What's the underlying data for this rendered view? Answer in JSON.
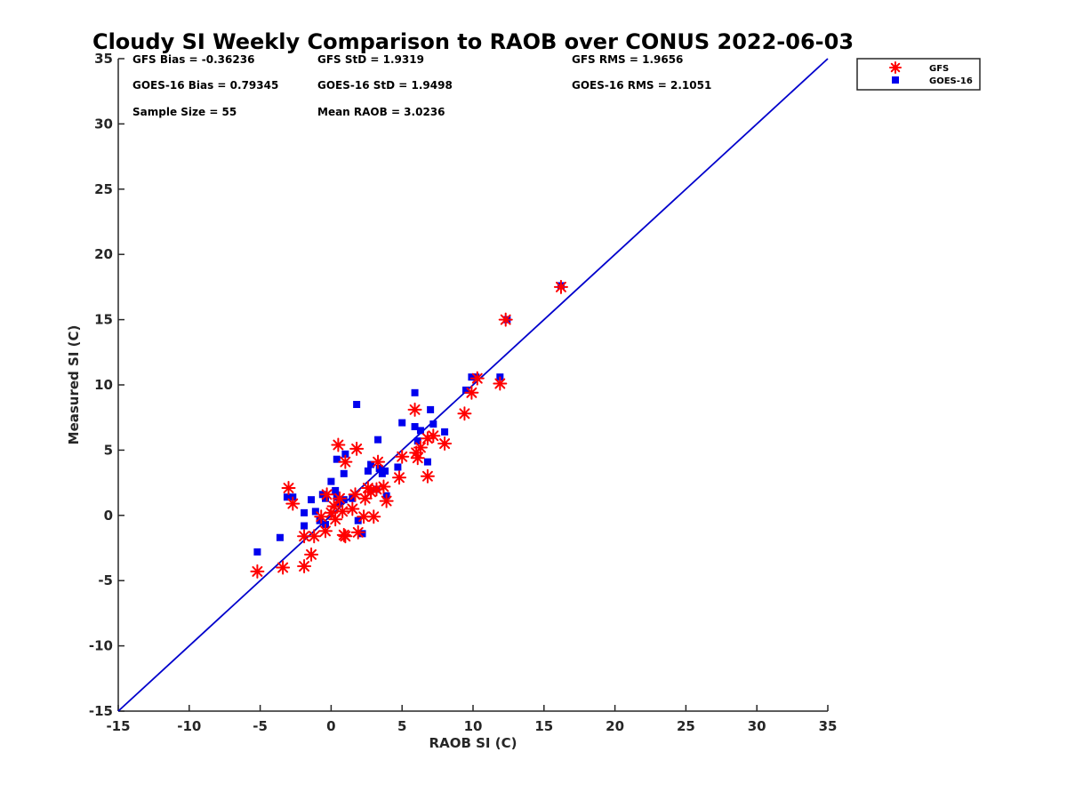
{
  "chart_data": {
    "type": "scatter",
    "title": "Cloudy SI Weekly Comparison to RAOB over CONUS 2022-06-03",
    "xlabel": "RAOB SI (C)",
    "ylabel": "Measured SI (C)",
    "xlim": [
      -15,
      35
    ],
    "ylim": [
      -15,
      35
    ],
    "xticks": [
      "-15",
      "-10",
      "-5",
      "0",
      "5",
      "10",
      "15",
      "20",
      "25",
      "30",
      "35"
    ],
    "yticks": [
      "-15",
      "-10",
      "-5",
      "0",
      "5",
      "10",
      "15",
      "20",
      "25",
      "30",
      "35"
    ],
    "grid": false,
    "legend_placement": "top-right, outside plot",
    "reference_line": {
      "from": [
        -15,
        -15
      ],
      "to": [
        35,
        35
      ],
      "color": "#0000cc"
    },
    "stats": {
      "gfs_bias": "GFS Bias = -0.36236",
      "gfs_std": "GFS StD = 1.9319",
      "gfs_rms": "GFS RMS = 1.9656",
      "goes_bias": "GOES-16 Bias = 0.79345",
      "goes_std": "GOES-16 StD = 1.9498",
      "goes_rms": "GOES-16 RMS = 2.1051",
      "sample_size": "Sample Size = 55",
      "mean_raob": "Mean RAOB = 3.0236"
    },
    "series": [
      {
        "name": "GFS",
        "marker": "asterisk",
        "color": "#ff0000",
        "points": [
          [
            -5.2,
            -4.3
          ],
          [
            -3.4,
            -4.0
          ],
          [
            -3.0,
            2.1
          ],
          [
            -2.7,
            0.9
          ],
          [
            -1.9,
            -1.6
          ],
          [
            -1.9,
            -3.9
          ],
          [
            -1.4,
            -3.0
          ],
          [
            -1.2,
            -1.6
          ],
          [
            -0.7,
            -0.1
          ],
          [
            -0.4,
            -1.2
          ],
          [
            -0.3,
            1.6
          ],
          [
            0.0,
            0.2
          ],
          [
            0.2,
            0.7
          ],
          [
            0.3,
            -0.3
          ],
          [
            0.5,
            5.4
          ],
          [
            0.6,
            1.3
          ],
          [
            0.8,
            0.3
          ],
          [
            0.9,
            -1.5
          ],
          [
            1.0,
            -1.6
          ],
          [
            1.0,
            4.1
          ],
          [
            1.5,
            0.5
          ],
          [
            1.7,
            1.6
          ],
          [
            1.8,
            5.1
          ],
          [
            1.9,
            -1.3
          ],
          [
            2.3,
            -0.1
          ],
          [
            2.4,
            1.3
          ],
          [
            2.6,
            2.1
          ],
          [
            2.8,
            1.8
          ],
          [
            3.0,
            -0.1
          ],
          [
            3.2,
            2.0
          ],
          [
            3.3,
            4.1
          ],
          [
            3.7,
            2.2
          ],
          [
            3.9,
            1.1
          ],
          [
            4.8,
            2.9
          ],
          [
            5.0,
            4.5
          ],
          [
            5.9,
            8.1
          ],
          [
            6.0,
            4.8
          ],
          [
            6.1,
            4.4
          ],
          [
            6.3,
            5.2
          ],
          [
            6.8,
            3.0
          ],
          [
            6.8,
            5.9
          ],
          [
            7.2,
            6.1
          ],
          [
            8.0,
            5.5
          ],
          [
            9.4,
            7.8
          ],
          [
            9.9,
            9.4
          ],
          [
            10.3,
            10.5
          ],
          [
            11.9,
            10.1
          ],
          [
            12.3,
            15.0
          ],
          [
            16.2,
            17.5
          ]
        ]
      },
      {
        "name": "GOES-16",
        "marker": "square",
        "color": "#0000ee",
        "points": [
          [
            -5.2,
            -2.8
          ],
          [
            -3.6,
            -1.7
          ],
          [
            -3.1,
            1.4
          ],
          [
            -2.7,
            1.4
          ],
          [
            -1.9,
            0.2
          ],
          [
            -1.9,
            -0.8
          ],
          [
            -1.4,
            1.2
          ],
          [
            -1.1,
            0.3
          ],
          [
            -0.8,
            -0.4
          ],
          [
            -0.6,
            1.6
          ],
          [
            -0.4,
            1.3
          ],
          [
            -0.4,
            -0.7
          ],
          [
            0.0,
            2.6
          ],
          [
            0.3,
            1.9
          ],
          [
            0.4,
            1.4
          ],
          [
            0.4,
            4.3
          ],
          [
            0.6,
            0.9
          ],
          [
            0.9,
            1.2
          ],
          [
            0.9,
            3.2
          ],
          [
            1.0,
            4.7
          ],
          [
            1.5,
            1.3
          ],
          [
            1.8,
            8.5
          ],
          [
            1.9,
            -0.4
          ],
          [
            2.2,
            -1.4
          ],
          [
            2.6,
            3.4
          ],
          [
            2.8,
            3.9
          ],
          [
            3.2,
            2.0
          ],
          [
            3.3,
            5.8
          ],
          [
            3.4,
            3.6
          ],
          [
            3.6,
            3.2
          ],
          [
            3.8,
            3.4
          ],
          [
            3.9,
            1.5
          ],
          [
            4.7,
            3.7
          ],
          [
            5.0,
            7.1
          ],
          [
            5.9,
            9.4
          ],
          [
            5.9,
            6.8
          ],
          [
            6.1,
            5.7
          ],
          [
            6.3,
            6.5
          ],
          [
            6.8,
            4.1
          ],
          [
            7.0,
            8.1
          ],
          [
            7.2,
            7.0
          ],
          [
            8.0,
            6.4
          ],
          [
            9.5,
            9.6
          ],
          [
            9.9,
            10.6
          ],
          [
            10.2,
            10.6
          ],
          [
            11.9,
            10.6
          ],
          [
            12.4,
            15.0
          ],
          [
            16.2,
            17.6
          ]
        ]
      }
    ]
  }
}
